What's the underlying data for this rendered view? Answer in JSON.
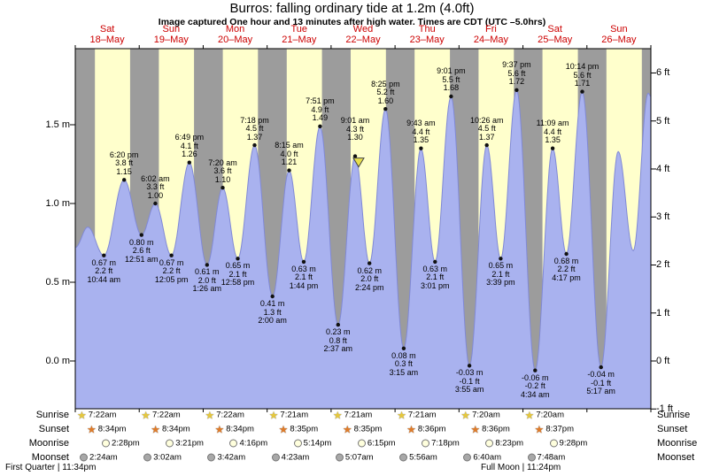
{
  "chart_data": {
    "type": "area",
    "title": "Burros: falling  ordinary tide at 1.2m (4.0ft)",
    "subtitle": "Image captured One hour and 13 minutes after high water. Times are CDT (UTC –5.0hrs)",
    "ylim_m": [
      -0.55,
      1.98
    ],
    "y_axis_left": {
      "unit": "m",
      "ticks": [
        {
          "v": 0.0,
          "label": "0.0 m"
        },
        {
          "v": 0.5,
          "label": "0.5 m"
        },
        {
          "v": 1.0,
          "label": "1.0 m"
        },
        {
          "v": 1.5,
          "label": "1.5 m"
        }
      ]
    },
    "y_axis_right": {
      "unit": "ft",
      "ticks": [
        {
          "v": -1,
          "label": "-1 ft"
        },
        {
          "v": 0,
          "label": "0 ft"
        },
        {
          "v": 1,
          "label": "1 ft"
        },
        {
          "v": 2,
          "label": "2 ft"
        },
        {
          "v": 3,
          "label": "3 ft"
        },
        {
          "v": 4,
          "label": "4 ft"
        },
        {
          "v": 5,
          "label": "5 ft"
        },
        {
          "v": 6,
          "label": "6 ft"
        }
      ]
    },
    "days": [
      {
        "name": "Sat",
        "date": "18–May"
      },
      {
        "name": "Sun",
        "date": "19–May"
      },
      {
        "name": "Mon",
        "date": "20–May"
      },
      {
        "name": "Tue",
        "date": "21–May"
      },
      {
        "name": "Wed",
        "date": "22–May"
      },
      {
        "name": "Thu",
        "date": "23–May"
      },
      {
        "name": "Fri",
        "date": "24–May"
      },
      {
        "name": "Sat",
        "date": "25–May"
      },
      {
        "name": "Sun",
        "date": "26–May"
      }
    ],
    "tide_events": [
      {
        "t": 10.733,
        "h": 0.67,
        "type": "low",
        "lines": [
          "0.67 m",
          "2.2 ft",
          "10:44 am"
        ]
      },
      {
        "t": 18.333,
        "h": 1.15,
        "type": "high",
        "lines": [
          "6:20 pm",
          "3.8 ft",
          "1.15"
        ]
      },
      {
        "t": 24.85,
        "h": 0.8,
        "type": "low",
        "lines": [
          "0.80 m",
          "2.6 ft",
          "12:51 am"
        ]
      },
      {
        "t": 30.033,
        "h": 1.0,
        "type": "high",
        "lines": [
          "6:02 am",
          "3.3 ft",
          "1.00"
        ]
      },
      {
        "t": 36.083,
        "h": 0.67,
        "type": "low",
        "lines": [
          "0.67 m",
          "2.2 ft",
          "12:05 pm"
        ]
      },
      {
        "t": 42.817,
        "h": 1.26,
        "type": "high",
        "lines": [
          "6:49 pm",
          "4.1 ft",
          "1.26"
        ]
      },
      {
        "t": 49.433,
        "h": 0.61,
        "type": "low",
        "lines": [
          "0.61 m",
          "2.0 ft",
          "1:26 am"
        ]
      },
      {
        "t": 55.333,
        "h": 1.1,
        "type": "high",
        "lines": [
          "7:20 am",
          "3.6 ft",
          "1.10"
        ]
      },
      {
        "t": 60.967,
        "h": 0.65,
        "type": "low",
        "lines": [
          "0.65 m",
          "2.1 ft",
          "12:58 pm"
        ]
      },
      {
        "t": 67.3,
        "h": 1.37,
        "type": "high",
        "lines": [
          "7:18 pm",
          "4.5 ft",
          "1.37"
        ]
      },
      {
        "t": 74.0,
        "h": 0.41,
        "type": "low",
        "lines": [
          "0.41 m",
          "1.3 ft",
          "2:00 am"
        ]
      },
      {
        "t": 80.25,
        "h": 1.21,
        "type": "high",
        "lines": [
          "8:15 am",
          "4.0 ft",
          "1.21"
        ]
      },
      {
        "t": 85.733,
        "h": 0.63,
        "type": "low",
        "lines": [
          "0.63 m",
          "2.1 ft",
          "1:44 pm"
        ]
      },
      {
        "t": 91.85,
        "h": 1.49,
        "type": "high",
        "lines": [
          "7:51 pm",
          "4.9 ft",
          "1.49"
        ]
      },
      {
        "t": 98.617,
        "h": 0.23,
        "type": "low",
        "lines": [
          "0.23 m",
          "0.8 ft",
          "2:37 am"
        ]
      },
      {
        "t": 105.017,
        "h": 1.3,
        "type": "high",
        "lines": [
          "9:01 am",
          "4.3 ft",
          "1.30"
        ]
      },
      {
        "t": 110.4,
        "h": 0.62,
        "type": "low",
        "lines": [
          "0.62 m",
          "2.0 ft",
          "2:24 pm"
        ]
      },
      {
        "t": 116.417,
        "h": 1.6,
        "type": "high",
        "lines": [
          "8:25 pm",
          "5.2 ft",
          "1.60"
        ]
      },
      {
        "t": 123.25,
        "h": 0.08,
        "type": "low",
        "lines": [
          "0.08 m",
          "0.3 ft",
          "3:15 am"
        ]
      },
      {
        "t": 129.717,
        "h": 1.35,
        "type": "high",
        "lines": [
          "9:43 am",
          "4.4 ft",
          "1.35"
        ]
      },
      {
        "t": 135.017,
        "h": 0.63,
        "type": "low",
        "lines": [
          "0.63 m",
          "2.1 ft",
          "3:01 pm"
        ]
      },
      {
        "t": 141.017,
        "h": 1.68,
        "type": "high",
        "lines": [
          "9:01 pm",
          "5.5 ft",
          "1.68"
        ]
      },
      {
        "t": 147.917,
        "h": -0.03,
        "type": "low",
        "lines": [
          "-0.03 m",
          "-0.1 ft",
          "3:55 am"
        ]
      },
      {
        "t": 154.433,
        "h": 1.37,
        "type": "high",
        "lines": [
          "10:26 am",
          "4.5 ft",
          "1.37"
        ]
      },
      {
        "t": 159.65,
        "h": 0.65,
        "type": "low",
        "lines": [
          "0.65 m",
          "2.1 ft",
          "3:39 pm"
        ]
      },
      {
        "t": 165.617,
        "h": 1.72,
        "type": "high",
        "lines": [
          "9:37 pm",
          "5.6 ft",
          "1.72"
        ]
      },
      {
        "t": 172.567,
        "h": -0.06,
        "type": "low",
        "lines": [
          "-0.06 m",
          "-0.2 ft",
          "4:34 am"
        ]
      },
      {
        "t": 179.15,
        "h": 1.35,
        "type": "high",
        "lines": [
          "11:09 am",
          "4.4 ft",
          "1.35"
        ]
      },
      {
        "t": 184.283,
        "h": 0.68,
        "type": "low",
        "lines": [
          "0.68 m",
          "2.2 ft",
          "4:17 pm"
        ]
      },
      {
        "t": 190.233,
        "h": 1.71,
        "type": "high",
        "lines": [
          "10:14 pm",
          "5.6 ft",
          "1.71"
        ]
      },
      {
        "t": 197.283,
        "h": -0.04,
        "type": "low",
        "lines": [
          "-0.04 m",
          "-0.1 ft",
          "5:17 am"
        ]
      }
    ],
    "curve_start": [
      {
        "t": 0,
        "h": 0.72
      },
      {
        "t": 4.7,
        "h": 0.85
      }
    ],
    "curve_end": [
      {
        "t": 203.75,
        "h": 1.33
      },
      {
        "t": 209.4,
        "h": 0.7
      },
      {
        "t": 215.0,
        "h": 1.7
      },
      {
        "t": 216,
        "h": 1.68
      }
    ],
    "current_marker_event_index": 15,
    "sun_moon": {
      "rows": [
        {
          "key": "sunrise",
          "label": "Sunrise",
          "icon": "sunrise-star-icon",
          "times": [
            "7:22am",
            "7:22am",
            "7:22am",
            "7:21am",
            "7:21am",
            "7:21am",
            "7:20am",
            "7:20am"
          ]
        },
        {
          "key": "sunset",
          "label": "Sunset",
          "icon": "sunset-star-icon",
          "times": [
            "8:34pm",
            "8:34pm",
            "8:34pm",
            "8:35pm",
            "8:35pm",
            "8:36pm",
            "8:36pm",
            "8:37pm"
          ]
        },
        {
          "key": "moonrise",
          "label": "Moonrise",
          "icon": "moonrise-moon-icon",
          "times": [
            "2:28pm",
            "3:21pm",
            "4:16pm",
            "5:14pm",
            "6:15pm",
            "7:18pm",
            "8:23pm",
            "9:28pm"
          ]
        },
        {
          "key": "moonset",
          "label": "Moonset",
          "icon": "moonset-moon-icon",
          "times": [
            "2:24am",
            "3:02am",
            "3:42am",
            "4:23am",
            "5:07am",
            "5:56am",
            "6:40am",
            "7:48am"
          ]
        }
      ]
    },
    "moon_phases": [
      {
        "label": "First Quarter | 11:34pm"
      },
      {
        "label": "Full Moon | 11:24pm"
      }
    ],
    "colors": {
      "day_band": "#ffffcc",
      "night_band": "#9c9c9c",
      "tide_fill": "#a9b2ef",
      "tide_stroke": "#8089d6",
      "day_label": "#cc0000",
      "sunrise_star": "#e6c83c",
      "sunset_star": "#e07b28",
      "moonrise_fill": "#ffffdd",
      "moonset_fill": "#a8a8a8",
      "marker_fill": "#e8e04c"
    }
  }
}
